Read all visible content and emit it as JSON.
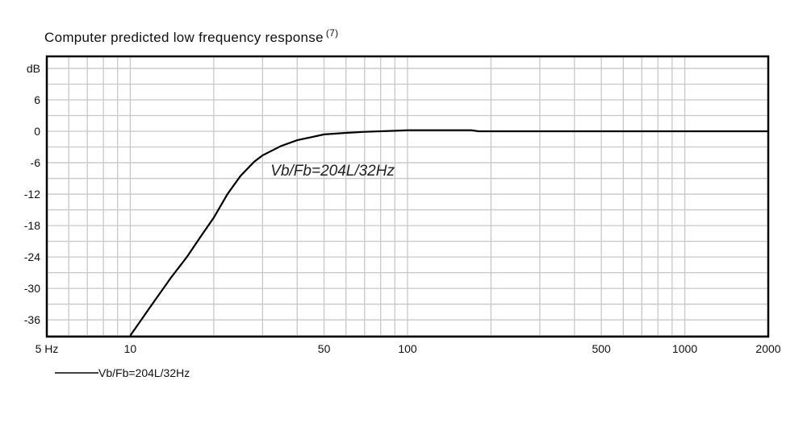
{
  "chart_data": {
    "type": "line",
    "title": "Computer predicted low frequency response",
    "title_superscript": "(7)",
    "xlabel": "",
    "ylabel": "dB",
    "x_scale": "log",
    "xlim": [
      5,
      2000
    ],
    "ylim": [
      -39.2,
      14.3
    ],
    "grid": true,
    "x_ticks": [
      5,
      10,
      50,
      100,
      500,
      1000,
      2000
    ],
    "x_tick_labels": [
      "5 Hz",
      "10",
      "50",
      "100",
      "500",
      "1000",
      "2000"
    ],
    "y_ticks": [
      6,
      0,
      -6,
      -12,
      -18,
      -24,
      -30,
      -36
    ],
    "y_tick_labels": [
      "6",
      "0",
      "-6",
      "-12",
      "-18",
      "-24",
      "-30",
      "-36"
    ],
    "y_unit_label": "dB",
    "annotation": {
      "text": "Vb/Fb=204L/32Hz",
      "x": 29,
      "y": -7.5
    },
    "legend": {
      "placement": "bottom-left",
      "entries": [
        "Vb/Fb=204L/32Hz"
      ]
    },
    "series": [
      {
        "name": "Vb/Fb=204L/32Hz",
        "color": "#000000",
        "x": [
          10,
          12,
          14,
          16,
          18,
          20,
          22.4,
          25,
          28,
          30,
          35,
          40,
          50,
          60,
          70,
          90,
          100,
          170,
          180,
          2000
        ],
        "y": [
          -39,
          -33,
          -28,
          -24,
          -20,
          -16.5,
          -12,
          -8.5,
          -5.8,
          -4.6,
          -2.8,
          -1.7,
          -0.6,
          -0.3,
          -0.1,
          0.1,
          0.2,
          0.2,
          0,
          0
        ]
      }
    ]
  }
}
